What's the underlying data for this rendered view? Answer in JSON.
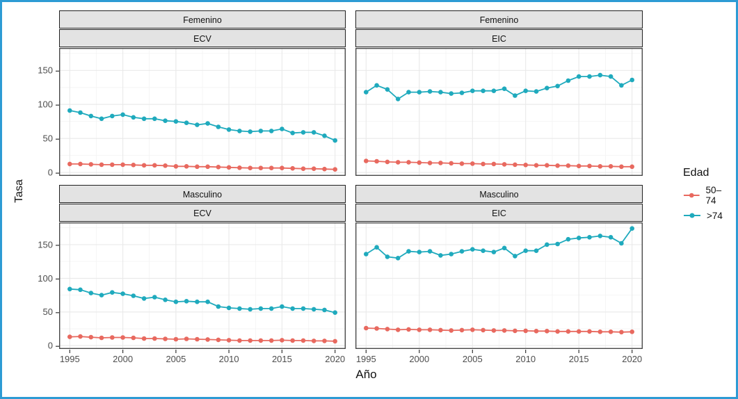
{
  "figure": {
    "border_color": "#2D9BD4",
    "background": "#FFFFFF"
  },
  "chart_data": {
    "type": "line",
    "title": "",
    "xlabel": "Año",
    "ylabel": "Tasa",
    "legend_title": "Edad",
    "legend_position": "right",
    "grid": true,
    "x": [
      1995,
      1996,
      1997,
      1998,
      1999,
      2000,
      2001,
      2002,
      2003,
      2004,
      2005,
      2006,
      2007,
      2008,
      2009,
      2010,
      2011,
      2012,
      2013,
      2014,
      2015,
      2016,
      2017,
      2018,
      2019,
      2020
    ],
    "x_ticks": [
      1995,
      2000,
      2005,
      2010,
      2015,
      2020
    ],
    "y_ticks": [
      0,
      50,
      100,
      150
    ],
    "xlim": [
      1994,
      2021
    ],
    "ylim": [
      -5,
      183
    ],
    "facet_rows": [
      "Femenino",
      "Masculino"
    ],
    "facet_cols": [
      "ECV",
      "EIC"
    ],
    "series_names": [
      "50-74",
      ">74"
    ],
    "series_colors": {
      "50-74": "#E8695F",
      ">74": "#1FAABD"
    },
    "panels": [
      {
        "row": "Femenino",
        "col": "ECV",
        "series": [
          {
            "name": "50-74",
            "values": [
              12.5,
              12.5,
              12,
              11.5,
              11.5,
              11.5,
              11,
              10.5,
              10.5,
              10,
              9,
              9,
              8.5,
              8.5,
              8,
              7.5,
              7,
              6.5,
              6.5,
              6.5,
              6.5,
              6,
              5.5,
              5.5,
              5,
              4.5
            ]
          },
          {
            "name": ">74",
            "values": [
              91,
              88,
              83,
              79,
              83,
              85,
              81,
              79,
              79,
              76,
              75,
              73,
              70,
              72,
              67,
              63,
              61,
              60,
              61,
              61,
              64,
              58,
              59,
              59,
              54,
              47
            ]
          }
        ]
      },
      {
        "row": "Femenino",
        "col": "EIC",
        "series": [
          {
            "name": "50-74",
            "values": [
              17,
              16.5,
              15.5,
              15,
              15,
              14.5,
              14,
              14,
              13.5,
              13,
              13,
              12.5,
              12.5,
              12,
              11.5,
              11,
              10.5,
              10.5,
              10,
              10,
              9.5,
              9.5,
              9,
              9,
              8.5,
              8.5
            ]
          },
          {
            "name": ">74",
            "values": [
              118,
              128,
              122,
              108,
              118,
              118,
              119,
              118,
              116,
              117,
              120,
              120,
              120,
              123,
              113,
              120,
              119,
              124,
              127,
              135,
              141,
              141,
              143,
              141,
              128,
              136
            ]
          }
        ]
      },
      {
        "row": "Masculino",
        "col": "ECV",
        "series": [
          {
            "name": "50-74",
            "values": [
              13,
              13.5,
              12.5,
              11.5,
              12,
              12,
              11.5,
              10.5,
              10.5,
              10,
              9.5,
              10,
              9.5,
              9,
              8.5,
              8,
              7.5,
              7.5,
              7.5,
              7.5,
              8,
              7.5,
              7.5,
              7,
              7,
              6.5
            ]
          },
          {
            "name": ">74",
            "values": [
              84,
              83,
              78,
              75,
              79,
              77,
              74,
              70,
              72,
              68,
              65,
              66,
              65,
              65,
              58,
              56,
              55,
              54,
              55,
              55,
              58,
              55,
              55,
              54,
              53,
              49
            ]
          }
        ]
      },
      {
        "row": "Masculino",
        "col": "EIC",
        "series": [
          {
            "name": "50-74",
            "values": [
              26,
              25.5,
              24.5,
              23.5,
              24,
              23.5,
              23.5,
              23,
              22.5,
              23,
              23.5,
              23,
              22.5,
              22.5,
              22,
              22,
              21.5,
              21.5,
              21,
              21,
              21,
              21,
              20.5,
              20.5,
              20,
              20.5
            ]
          },
          {
            "name": ">74",
            "values": [
              136,
              146,
              132,
              130,
              140,
              139,
              140,
              134,
              136,
              140,
              143,
              141,
              139,
              145,
              133,
              141,
              141,
              150,
              151,
              158,
              160,
              161,
              163,
              161,
              152,
              174
            ]
          }
        ]
      }
    ]
  },
  "legend": {
    "title": "Edad",
    "items": [
      {
        "key": "50-74",
        "label": "50–74",
        "color": "#E8695F"
      },
      {
        "key": ">74",
        "label": ">74",
        "color": "#1FAABD"
      }
    ]
  },
  "axis": {
    "tick_color": "#4d4d4d",
    "grid_major": "#E9E9E9",
    "grid_minor": "#F4F4F4",
    "panel_border": "#3D3D3D"
  }
}
